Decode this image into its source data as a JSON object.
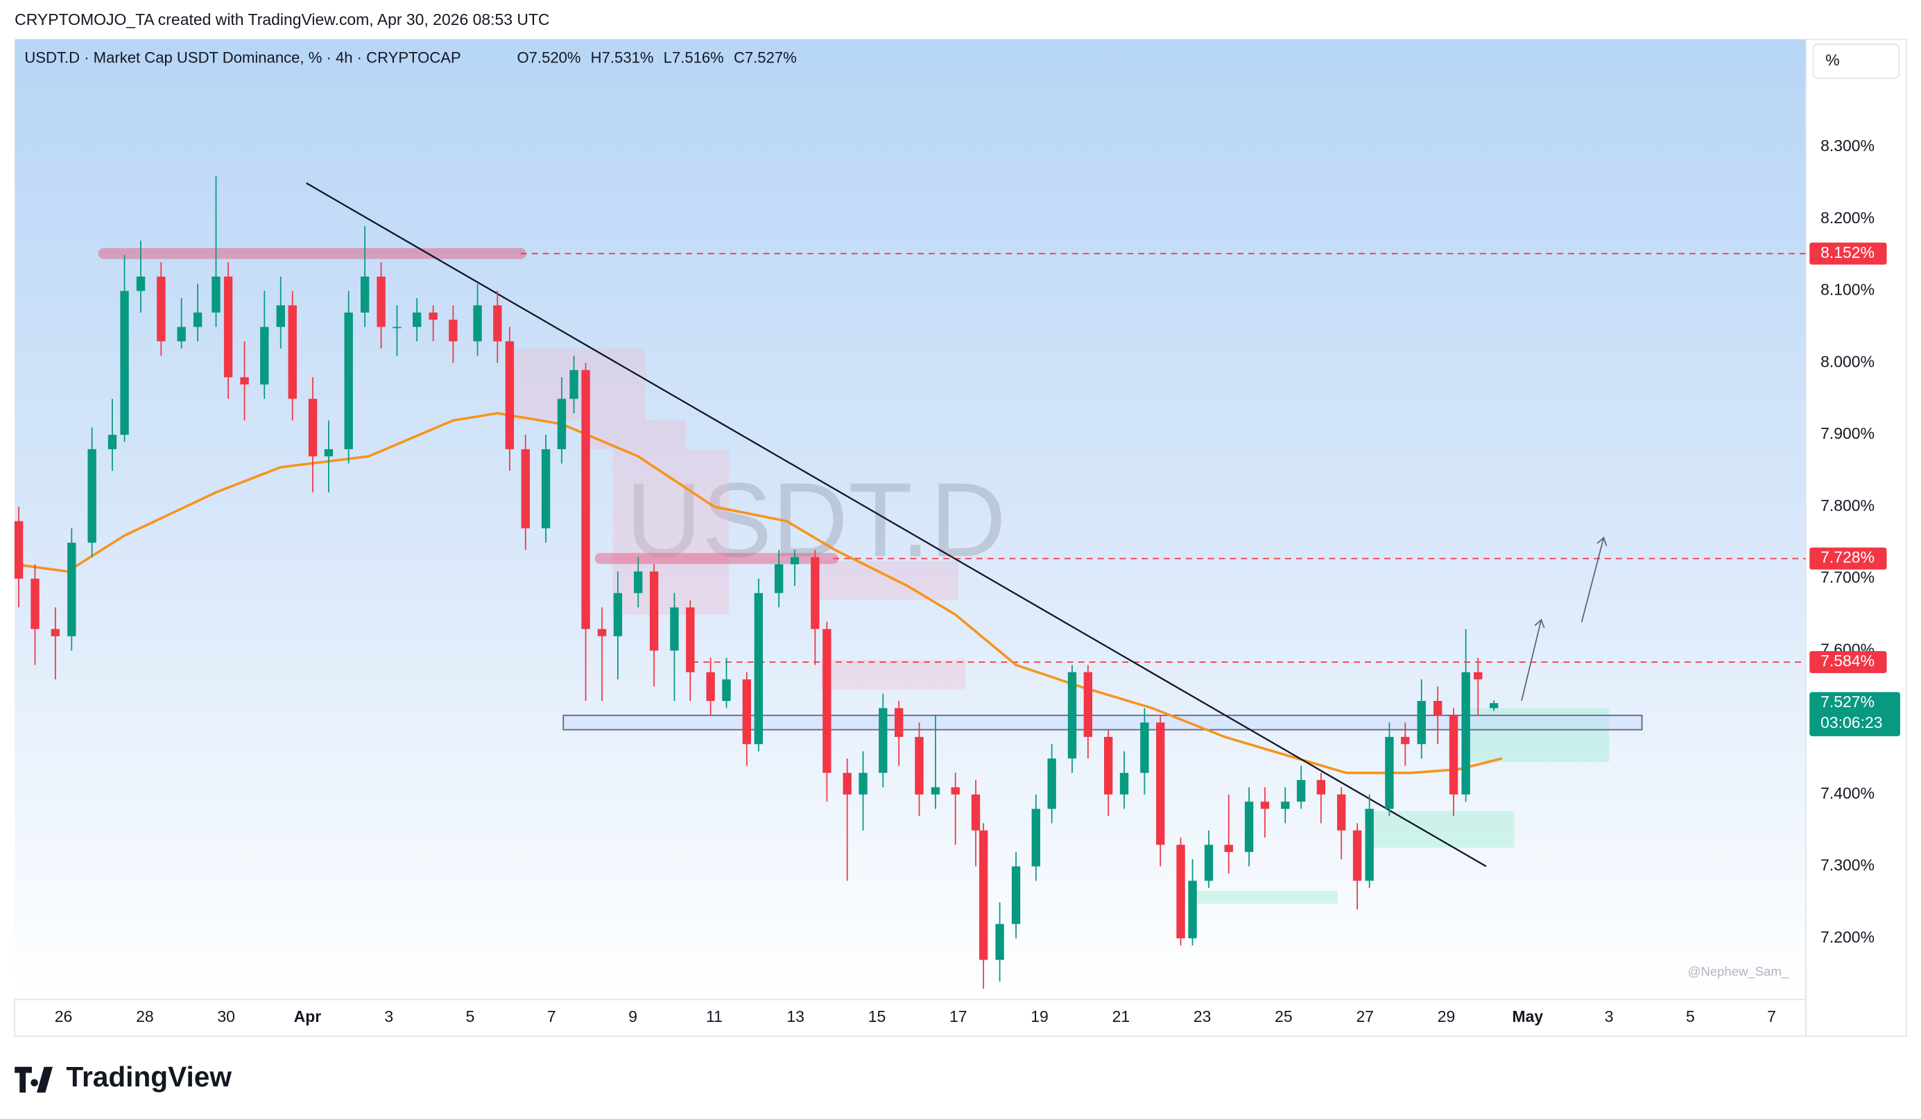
{
  "header": {
    "credit": "CRYPTOMOJO_TA created with TradingView.com, Apr 30, 2026 08:53 UTC",
    "brand": "TradingView"
  },
  "chart_data": {
    "type": "candlestick",
    "title": "USDT.D · Market Cap USDT Dominance, % · 4h · CRYPTOCAP",
    "ohlc_labels": [
      "O7.520%",
      "H7.531%",
      "L7.516%",
      "C7.527%"
    ],
    "symbol": "USDT.D",
    "signature": "@Nephew_Sam_",
    "scale_button": "%",
    "grid": false,
    "xlim": [
      24.8,
      68.84
    ],
    "xticks": [
      26,
      28,
      30,
      {
        "value": 32,
        "label": "Apr"
      },
      {
        "value": 34,
        "label": "3"
      },
      {
        "value": 36,
        "label": "5"
      },
      {
        "value": 38,
        "label": "7"
      },
      {
        "value": 40,
        "label": "9"
      },
      {
        "value": 42,
        "label": "11"
      },
      {
        "value": 44,
        "label": "13"
      },
      {
        "value": 46,
        "label": "15"
      },
      {
        "value": 48,
        "label": "17"
      },
      {
        "value": 50,
        "label": "19"
      },
      {
        "value": 52,
        "label": "21"
      },
      {
        "value": 54,
        "label": "23"
      },
      {
        "value": 56,
        "label": "25"
      },
      {
        "value": 58,
        "label": "27"
      },
      {
        "value": 60,
        "label": "29"
      },
      {
        "value": 62,
        "label": "May"
      },
      {
        "value": 64,
        "label": "3"
      },
      {
        "value": 66,
        "label": "5"
      },
      {
        "value": 68,
        "label": "7"
      }
    ],
    "ylim": [
      7.115,
      8.45
    ],
    "yticks": [
      {
        "value": 8.3,
        "label": "8.300%"
      },
      {
        "value": 8.2,
        "label": "8.200%"
      },
      {
        "value": 8.1,
        "label": "8.100%"
      },
      {
        "value": 8.0,
        "label": "8.000%"
      },
      {
        "value": 7.9,
        "label": "7.900%"
      },
      {
        "value": 7.8,
        "label": "7.800%"
      },
      {
        "value": 7.7,
        "label": "7.700%"
      },
      {
        "value": 7.6,
        "label": "7.600%"
      },
      {
        "value": 7.4,
        "label": "7.400%"
      },
      {
        "value": 7.3,
        "label": "7.300%"
      },
      {
        "value": 7.2,
        "label": "7.200%"
      }
    ],
    "candles": {
      "up_color": "#089981",
      "down_color": "#f23645",
      "x": [
        24.9,
        25.3,
        25.8,
        26.2,
        26.7,
        27.2,
        27.5,
        27.9,
        28.4,
        28.9,
        29.3,
        29.75,
        30.05,
        30.45,
        30.94,
        31.34,
        31.63,
        32.13,
        32.52,
        33.01,
        33.41,
        33.81,
        34.2,
        34.69,
        35.09,
        35.58,
        36.18,
        36.67,
        36.97,
        37.36,
        37.86,
        38.25,
        38.55,
        38.84,
        39.24,
        39.63,
        40.13,
        40.52,
        41.02,
        41.41,
        41.91,
        42.3,
        42.8,
        43.09,
        43.59,
        43.98,
        44.48,
        44.77,
        45.27,
        45.66,
        46.15,
        46.54,
        47.04,
        47.44,
        47.93,
        48.43,
        48.62,
        49.02,
        49.42,
        49.91,
        50.3,
        50.8,
        51.19,
        51.69,
        52.08,
        52.58,
        52.97,
        53.47,
        53.76,
        54.16,
        54.65,
        55.15,
        55.54,
        56.04,
        56.43,
        56.92,
        57.42,
        57.81,
        58.11,
        58.6,
        58.99,
        59.39,
        59.79,
        60.18,
        60.48,
        60.78,
        61.17
      ],
      "open": [
        7.78,
        7.7,
        7.63,
        7.62,
        7.75,
        7.88,
        7.9,
        8.1,
        8.12,
        8.03,
        8.05,
        8.07,
        8.12,
        7.98,
        7.97,
        8.05,
        8.08,
        7.95,
        7.87,
        7.88,
        8.07,
        8.12,
        8.05,
        8.05,
        8.07,
        8.06,
        8.03,
        8.08,
        8.03,
        7.88,
        7.77,
        7.88,
        7.95,
        7.99,
        7.63,
        7.62,
        7.68,
        7.71,
        7.6,
        7.66,
        7.57,
        7.53,
        7.56,
        7.47,
        7.68,
        7.72,
        7.73,
        7.63,
        7.43,
        7.4,
        7.43,
        7.52,
        7.48,
        7.4,
        7.41,
        7.4,
        7.35,
        7.17,
        7.22,
        7.3,
        7.38,
        7.45,
        7.57,
        7.48,
        7.4,
        7.43,
        7.5,
        7.33,
        7.2,
        7.28,
        7.33,
        7.32,
        7.39,
        7.38,
        7.39,
        7.42,
        7.4,
        7.35,
        7.28,
        7.38,
        7.48,
        7.47,
        7.53,
        7.51,
        7.4,
        7.57,
        7.52
      ],
      "high": [
        7.8,
        7.72,
        7.66,
        7.77,
        7.91,
        7.95,
        8.15,
        8.17,
        8.14,
        8.09,
        8.11,
        8.26,
        8.14,
        8.03,
        8.1,
        8.12,
        8.1,
        7.98,
        7.92,
        8.1,
        8.19,
        8.14,
        8.08,
        8.09,
        8.08,
        8.08,
        8.11,
        8.1,
        8.05,
        7.9,
        7.9,
        7.98,
        8.01,
        8.0,
        7.66,
        7.71,
        7.73,
        7.72,
        7.68,
        7.67,
        7.59,
        7.59,
        7.57,
        7.7,
        7.74,
        7.74,
        7.74,
        7.64,
        7.45,
        7.46,
        7.54,
        7.53,
        7.5,
        7.51,
        7.43,
        7.42,
        7.36,
        7.25,
        7.32,
        7.4,
        7.47,
        7.58,
        7.58,
        7.49,
        7.46,
        7.52,
        7.51,
        7.34,
        7.31,
        7.35,
        7.4,
        7.41,
        7.41,
        7.41,
        7.44,
        7.43,
        7.41,
        7.36,
        7.4,
        7.5,
        7.5,
        7.56,
        7.55,
        7.52,
        7.63,
        7.59,
        7.531
      ],
      "low": [
        7.66,
        7.58,
        7.56,
        7.6,
        7.73,
        7.85,
        7.89,
        8.07,
        8.01,
        8.02,
        8.03,
        8.05,
        7.95,
        7.92,
        7.95,
        8.02,
        7.92,
        7.82,
        7.82,
        7.86,
        8.05,
        8.02,
        8.01,
        8.03,
        8.03,
        8.0,
        8.01,
        8.0,
        7.85,
        7.74,
        7.75,
        7.86,
        7.93,
        7.53,
        7.53,
        7.56,
        7.66,
        7.55,
        7.53,
        7.53,
        7.51,
        7.52,
        7.44,
        7.46,
        7.66,
        7.69,
        7.58,
        7.39,
        7.28,
        7.35,
        7.41,
        7.44,
        7.37,
        7.38,
        7.33,
        7.3,
        7.13,
        7.14,
        7.2,
        7.28,
        7.36,
        7.43,
        7.45,
        7.37,
        7.38,
        7.4,
        7.3,
        7.19,
        7.19,
        7.27,
        7.29,
        7.3,
        7.34,
        7.36,
        7.38,
        7.36,
        7.31,
        7.24,
        7.27,
        7.37,
        7.44,
        7.45,
        7.47,
        7.37,
        7.39,
        7.51,
        7.516
      ],
      "close": [
        7.7,
        7.63,
        7.62,
        7.75,
        7.88,
        7.9,
        8.1,
        8.12,
        8.03,
        8.05,
        8.07,
        8.12,
        7.98,
        7.97,
        8.05,
        8.08,
        7.95,
        7.87,
        7.88,
        8.07,
        8.12,
        8.05,
        8.05,
        8.07,
        8.06,
        8.03,
        8.08,
        8.03,
        7.88,
        7.77,
        7.88,
        7.95,
        7.99,
        7.63,
        7.62,
        7.68,
        7.71,
        7.6,
        7.66,
        7.57,
        7.53,
        7.56,
        7.47,
        7.68,
        7.72,
        7.73,
        7.63,
        7.43,
        7.4,
        7.43,
        7.52,
        7.48,
        7.4,
        7.41,
        7.4,
        7.35,
        7.17,
        7.22,
        7.3,
        7.38,
        7.45,
        7.57,
        7.48,
        7.4,
        7.43,
        7.5,
        7.33,
        7.2,
        7.28,
        7.33,
        7.32,
        7.39,
        7.38,
        7.39,
        7.42,
        7.4,
        7.35,
        7.28,
        7.38,
        7.48,
        7.47,
        7.53,
        7.51,
        7.4,
        7.57,
        7.56,
        7.527
      ]
    },
    "moving_average": {
      "color": "#f7931a",
      "x": [
        24.8,
        26.1,
        27.5,
        29.75,
        31.34,
        33.5,
        35.58,
        36.67,
        38.25,
        40.13,
        42.0,
        43.78,
        44.97,
        46.75,
        47.93,
        49.42,
        51.0,
        52.77,
        54.55,
        56.04,
        57.54,
        59.14,
        60.31,
        61.37
      ],
      "y": [
        7.72,
        7.71,
        7.76,
        7.82,
        7.855,
        7.87,
        7.92,
        7.93,
        7.915,
        7.87,
        7.8,
        7.78,
        7.74,
        7.69,
        7.65,
        7.58,
        7.55,
        7.52,
        7.48,
        7.455,
        7.43,
        7.43,
        7.435,
        7.45
      ]
    },
    "trendline": {
      "color": "#131722",
      "x": [
        31.97,
        60.98
      ],
      "y": [
        8.25,
        7.3
      ]
    },
    "levels": [
      {
        "value": 8.152,
        "label": "8.152%",
        "from": 37.24,
        "color": "#f23645"
      },
      {
        "value": 7.728,
        "label": "7.728%",
        "from": 44.92,
        "color": "#f23645"
      },
      {
        "value": 7.584,
        "label": "7.584%",
        "from": 41.46,
        "color": "#f23645"
      }
    ],
    "current": {
      "value": 7.527,
      "label": "7.527%",
      "countdown": "03:06:23",
      "color": "#089981"
    },
    "highlights": [
      {
        "x": [
          26.99,
          37.24
        ],
        "y": 8.152
      },
      {
        "x": [
          39.2,
          44.92
        ],
        "y": 7.728
      }
    ],
    "supply_zones": [
      {
        "x": [
          36.94,
          40.31
        ],
        "y": [
          7.92,
          8.02
        ]
      },
      {
        "x": [
          38.77,
          41.31
        ],
        "y": [
          7.88,
          7.92
        ]
      },
      {
        "x": [
          39.5,
          42.36
        ],
        "y": [
          7.65,
          7.88
        ]
      },
      {
        "x": [
          44.53,
          48.0
        ],
        "y": [
          7.67,
          7.725
        ]
      },
      {
        "x": [
          44.62,
          48.18
        ],
        "y": [
          7.546,
          7.587
        ]
      }
    ],
    "demand_zones": [
      {
        "x": [
          60.59,
          64.0
        ],
        "y": [
          7.445,
          7.52
        ]
      },
      {
        "x": [
          58.18,
          61.67
        ],
        "y": [
          7.326,
          7.377
        ]
      },
      {
        "x": [
          53.81,
          57.33
        ],
        "y": [
          7.248,
          7.266
        ]
      }
    ],
    "range_box": {
      "x": [
        38.29,
        64.81
      ],
      "y": [
        7.49,
        7.51
      ]
    }
  }
}
